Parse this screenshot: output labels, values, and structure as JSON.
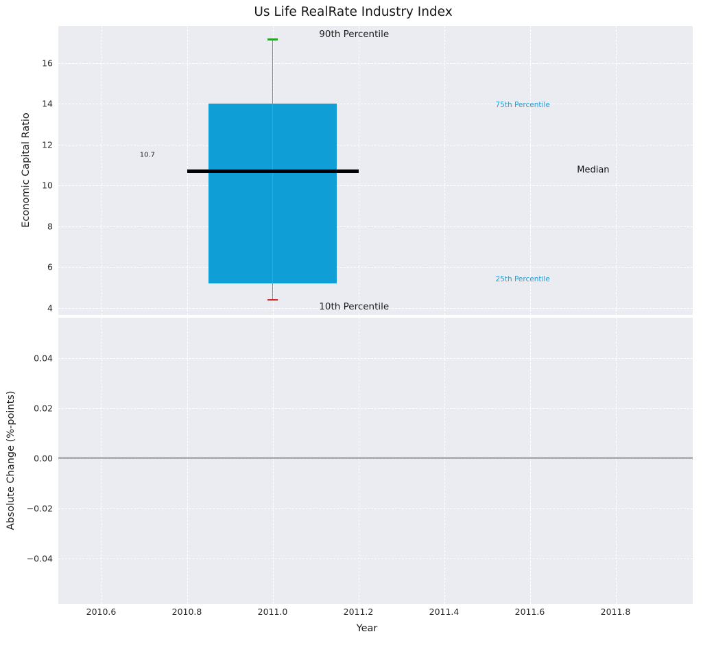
{
  "chart_data": {
    "type": "boxplot",
    "title": "Us Life RealRate Industry Index",
    "xlabel": "Year",
    "x_range": [
      2010.5,
      2011.98
    ],
    "x_tick_values": [
      2010.6,
      2010.8,
      2011.0,
      2011.2,
      2011.4,
      2011.6,
      2011.8
    ],
    "x_tick_labels": [
      "2010.6",
      "2010.8",
      "2011.0",
      "2011.2",
      "2011.4",
      "2011.6",
      "2011.8"
    ],
    "grid": {
      "visible": true,
      "style": "dashed",
      "legend": "none"
    },
    "panels": [
      {
        "ylabel": "Economic Capital Ratio",
        "y_range": [
          3.65,
          17.8
        ],
        "y_tick_values": [
          4,
          6,
          8,
          10,
          12,
          14,
          16
        ],
        "y_tick_labels": [
          "4",
          "6",
          "8",
          "10",
          "12",
          "14",
          "16"
        ],
        "series": [
          {
            "x": 2011.0,
            "median": 10.7,
            "q25": 5.2,
            "q75": 14.0,
            "p10": 4.4,
            "p90": 17.15,
            "box_x_left": 2010.85,
            "box_x_right": 2011.15,
            "median_x_left": 2010.8,
            "median_x_right": 2011.2,
            "cap_half_width": 0.012
          }
        ],
        "annotations": [
          {
            "text": "90th Percentile",
            "x": 2011.19,
            "y": 17.4,
            "color": "#1a1a1a",
            "size": 13.5,
            "align": "center"
          },
          {
            "text": "10th Percentile",
            "x": 2011.19,
            "y": 4.05,
            "color": "#1a1a1a",
            "size": 13.5,
            "align": "center"
          },
          {
            "text": "75th Percentile",
            "x": 2011.52,
            "y": 13.94,
            "color": "#229fd4",
            "size": 10.5,
            "align": "left"
          },
          {
            "text": "25th Percentile",
            "x": 2011.52,
            "y": 5.4,
            "color": "#229fd4",
            "size": 10.5,
            "align": "left"
          },
          {
            "text": "Median",
            "x": 2011.71,
            "y": 10.74,
            "color": "#111111",
            "size": 13,
            "align": "left"
          },
          {
            "text": "10.7",
            "x": 2010.69,
            "y": 11.48,
            "color": "#222222",
            "size": 10,
            "align": "left"
          }
        ]
      },
      {
        "ylabel": "Absolute Change (%-points)",
        "y_range": [
          -0.058,
          0.056
        ],
        "y_tick_values": [
          0.04,
          0.02,
          0,
          -0.02,
          -0.04
        ],
        "y_tick_labels": [
          "0.04",
          "0.02",
          "0.00",
          "−0.02",
          "−0.04"
        ],
        "zero_line": 0.0,
        "series": []
      }
    ],
    "colors": {
      "box_fill": "#0f9ed5",
      "median": "#000000",
      "whisker": "#8a8a8a",
      "cap_high": "#2ca02c",
      "cap_low": "#d62728",
      "panel_background": "#eaecf2",
      "gridline": "#ffffff",
      "zero_line": "#000000",
      "percentile_label": "#229fd4"
    }
  }
}
